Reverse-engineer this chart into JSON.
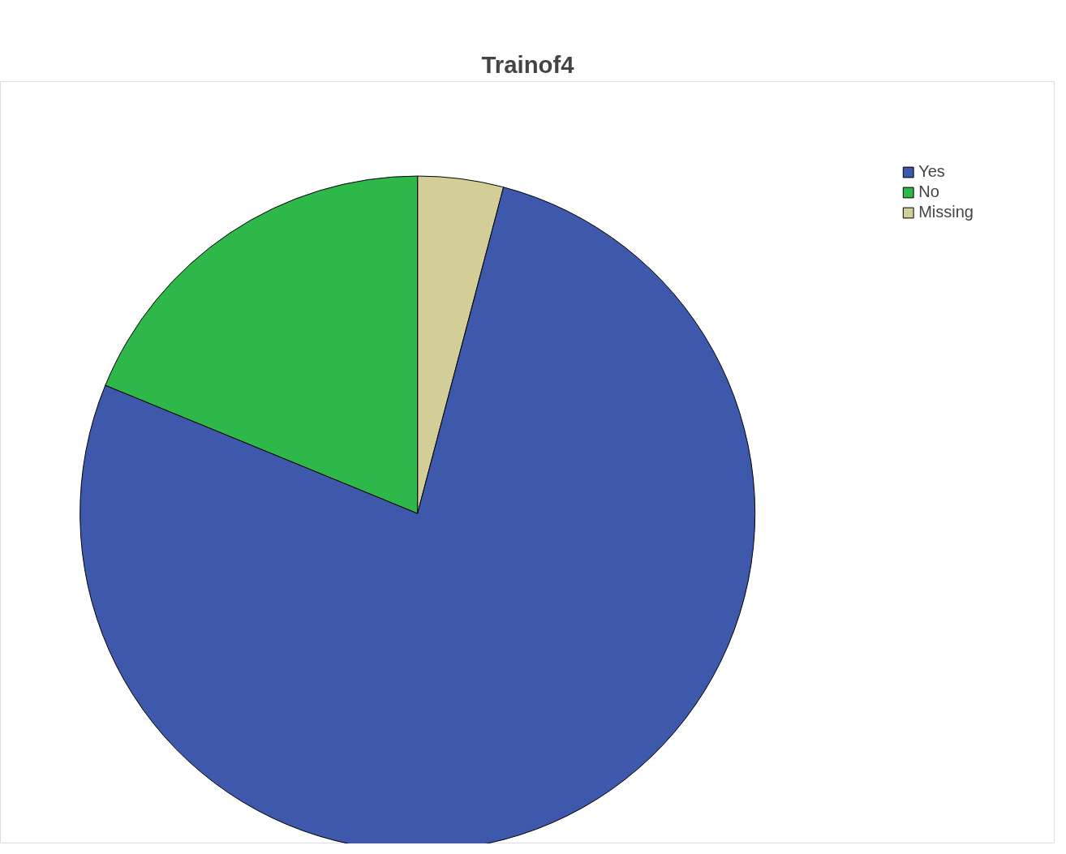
{
  "chart_data": {
    "type": "pie",
    "title": "Trainof4",
    "categories": [
      "Yes",
      "No",
      "Missing"
    ],
    "values": [
      77.1,
      18.8,
      4.1
    ],
    "colors": [
      "#3e58ac",
      "#2eb84a",
      "#d3ce97"
    ],
    "legend": "top right"
  }
}
